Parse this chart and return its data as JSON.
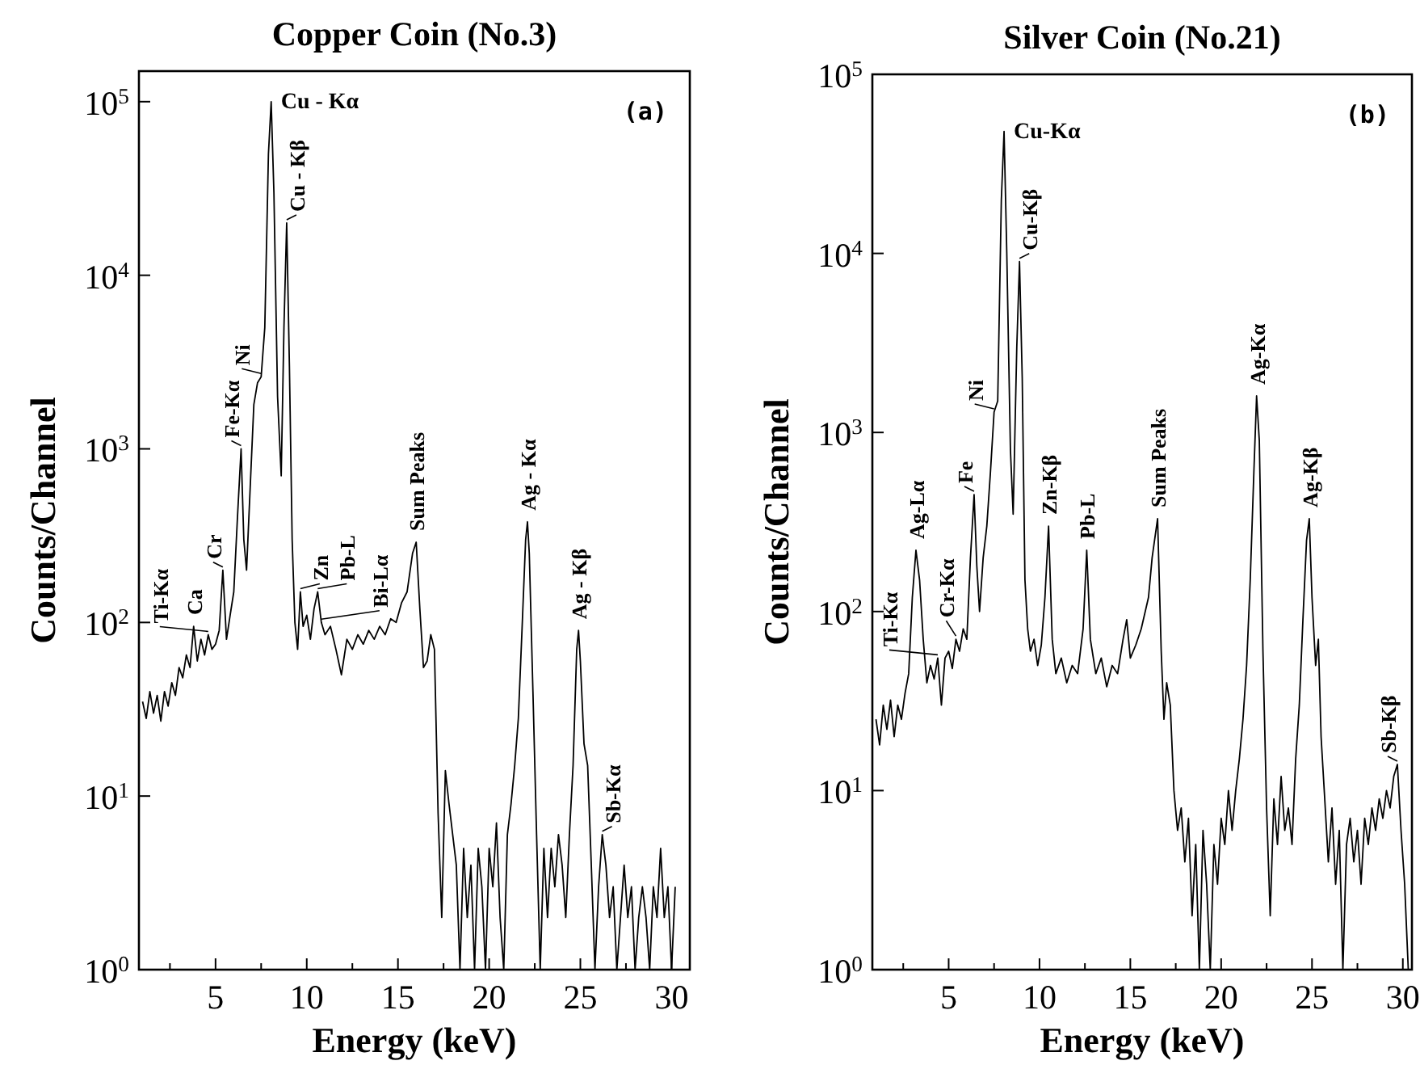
{
  "chart_data": [
    {
      "type": "line",
      "title": "Copper Coin (No.3)",
      "xlabel": "Energy (keV)",
      "ylabel": "Counts/Channel",
      "log": "y",
      "xlim": [
        0.8,
        31
      ],
      "ylim": [
        1,
        150000
      ],
      "xticks": [
        {
          "value": 2.5,
          "label": null
        },
        5,
        {
          "value": 7.5,
          "label": null
        },
        10,
        {
          "value": 12.5,
          "label": null
        },
        15,
        {
          "value": 17.5,
          "label": null
        },
        20,
        {
          "value": 22.5,
          "label": null
        },
        25,
        {
          "value": 27.5,
          "label": null
        },
        30
      ],
      "yticks": [
        {
          "value": 1,
          "label": "10$^{0}$"
        },
        {
          "value": 10,
          "label": "10$^{1}$"
        },
        {
          "value": 100,
          "label": "10$^{2}$"
        },
        {
          "value": 1000,
          "label": "10$^{3}$"
        },
        {
          "value": 10000,
          "label": "10$^{4}$"
        },
        {
          "value": 100000,
          "label": "10$^{5}$"
        }
      ],
      "series": [
        {
          "color": "#000000",
          "x": [
            1,
            1.2,
            1.4,
            1.6,
            1.8,
            2,
            2.2,
            2.4,
            2.6,
            2.8,
            3,
            3.2,
            3.4,
            3.6,
            3.8,
            4,
            4.2,
            4.4,
            4.6,
            4.8,
            5,
            5.2,
            5.4,
            5.6,
            5.8,
            6,
            6.2,
            6.4,
            6.55,
            6.7,
            6.9,
            7.1,
            7.3,
            7.5,
            7.7,
            7.9,
            8.05,
            8.2,
            8.4,
            8.6,
            8.75,
            8.9,
            9.05,
            9.2,
            9.35,
            9.5,
            9.65,
            9.8,
            10,
            10.2,
            10.4,
            10.6,
            10.8,
            11,
            11.3,
            11.6,
            11.9,
            12.2,
            12.5,
            12.8,
            13.1,
            13.4,
            13.7,
            14,
            14.3,
            14.6,
            14.9,
            15.2,
            15.5,
            15.8,
            16,
            16.2,
            16.4,
            16.6,
            16.8,
            17,
            17.2,
            17.4,
            17.6,
            17.8,
            18,
            18.2,
            18.4,
            18.6,
            18.8,
            19,
            19.2,
            19.4,
            19.6,
            19.8,
            20,
            20.2,
            20.4,
            20.6,
            20.8,
            21,
            21.2,
            21.4,
            21.6,
            21.8,
            22,
            22.1,
            22.2,
            22.4,
            22.6,
            22.8,
            23,
            23.2,
            23.4,
            23.6,
            23.8,
            24,
            24.2,
            24.4,
            24.6,
            24.8,
            24.9,
            25,
            25.2,
            25.4,
            25.6,
            25.8,
            26,
            26.2,
            26.4,
            26.6,
            26.8,
            27,
            27.2,
            27.4,
            27.6,
            27.8,
            28,
            28.2,
            28.4,
            28.6,
            28.8,
            29,
            29.2,
            29.4,
            29.6,
            29.8,
            30,
            30.2
          ],
          "values": [
            35,
            28,
            40,
            30,
            38,
            27,
            40,
            33,
            45,
            38,
            55,
            48,
            65,
            55,
            95,
            60,
            80,
            65,
            85,
            70,
            75,
            90,
            200,
            80,
            110,
            150,
            400,
            1000,
            300,
            200,
            600,
            1800,
            2400,
            2600,
            5000,
            50000,
            100000,
            30000,
            2000,
            700,
            5000,
            20000,
            3000,
            300,
            100,
            70,
            150,
            95,
            110,
            80,
            120,
            150,
            100,
            85,
            95,
            70,
            50,
            80,
            70,
            85,
            75,
            90,
            80,
            95,
            85,
            105,
            100,
            130,
            150,
            250,
            290,
            120,
            55,
            60,
            85,
            70,
            8,
            2,
            14,
            9,
            6,
            4,
            1,
            5,
            2,
            4,
            1,
            5,
            3,
            1,
            5,
            3,
            7,
            2,
            1,
            6,
            9,
            15,
            28,
            90,
            300,
            380,
            250,
            40,
            6,
            1,
            5,
            2,
            5,
            3,
            6,
            4,
            2,
            6,
            15,
            70,
            90,
            60,
            20,
            15,
            4,
            1,
            3,
            6,
            4,
            2,
            3,
            1,
            2,
            4,
            2,
            3,
            1,
            2,
            3,
            2,
            1,
            3,
            2,
            5,
            2,
            3,
            1,
            3
          ]
        }
      ],
      "annotations": [
        {
          "text": "Cu - Kα",
          "x": 8.05,
          "y": 100000
        },
        {
          "text": "Cu - Kβ",
          "x": 8.9,
          "y": 20000
        },
        {
          "text": "Ni",
          "x": 7.5,
          "y": 2600
        },
        {
          "text": "Fe-Kα",
          "x": 6.4,
          "y": 1000
        },
        {
          "text": "Zn",
          "x": 9.65,
          "y": 150
        },
        {
          "text": "Pb-L",
          "x": 10.6,
          "y": 150
        },
        {
          "text": "Bi-Lα",
          "x": 10.8,
          "y": 100
        },
        {
          "text": "Sum Peaks",
          "x": 16,
          "y": 290
        },
        {
          "text": "Ag - Kα",
          "x": 22.1,
          "y": 380
        },
        {
          "text": "Ag - Kβ",
          "x": 24.9,
          "y": 90
        },
        {
          "text": "Sb-Kα",
          "x": 26.2,
          "y": 6
        },
        {
          "text": "Ti-Kα",
          "x": 4.6,
          "y": 85
        },
        {
          "text": "Cr",
          "x": 5.4,
          "y": 200
        },
        {
          "text": "Ca",
          "x": 3.8,
          "y": 95
        },
        "(a)"
      ]
    },
    {
      "type": "line",
      "title": "Silver Coin (No.21)",
      "xlabel": "Energy (keV)",
      "ylabel": "Counts/Channel",
      "log": "y",
      "xlim": [
        0.8,
        30.5
      ],
      "ylim": [
        1,
        100000
      ],
      "xticks": [
        {
          "value": 2.5,
          "label": null
        },
        5,
        {
          "value": 7.5,
          "label": null
        },
        10,
        {
          "value": 12.5,
          "label": null
        },
        15,
        {
          "value": 17.5,
          "label": null
        },
        20,
        {
          "value": 22.5,
          "label": null
        },
        25,
        {
          "value": 27.5,
          "label": null
        },
        30
      ],
      "yticks": [
        {
          "value": 1,
          "label": "10$^{0}$"
        },
        {
          "value": 10,
          "label": "10$^{1}$"
        },
        {
          "value": 100,
          "label": "10$^{2}$"
        },
        {
          "value": 1000,
          "label": "10$^{3}$"
        },
        {
          "value": 10000,
          "label": "10$^{4}$"
        },
        {
          "value": 100000,
          "label": "10$^{5}$"
        }
      ],
      "series": [
        {
          "color": "#000000",
          "x": [
            1,
            1.2,
            1.4,
            1.6,
            1.8,
            2,
            2.2,
            2.4,
            2.6,
            2.8,
            3,
            3.2,
            3.4,
            3.6,
            3.8,
            4,
            4.2,
            4.4,
            4.6,
            4.8,
            5,
            5.2,
            5.4,
            5.6,
            5.8,
            6,
            6.2,
            6.4,
            6.55,
            6.7,
            6.9,
            7.1,
            7.3,
            7.5,
            7.7,
            7.9,
            8.05,
            8.2,
            8.4,
            8.55,
            8.75,
            8.9,
            9.05,
            9.2,
            9.35,
            9.5,
            9.7,
            9.9,
            10.1,
            10.3,
            10.5,
            10.7,
            10.9,
            11.2,
            11.5,
            11.8,
            12.1,
            12.4,
            12.6,
            12.8,
            13.1,
            13.4,
            13.7,
            14,
            14.3,
            14.6,
            14.8,
            15,
            15.3,
            15.6,
            16,
            16.2,
            16.5,
            16.7,
            16.85,
            17,
            17.2,
            17.4,
            17.6,
            17.8,
            18,
            18.2,
            18.4,
            18.6,
            18.8,
            19,
            19.2,
            19.4,
            19.6,
            19.8,
            20,
            20.2,
            20.4,
            20.6,
            20.8,
            21,
            21.2,
            21.4,
            21.6,
            21.8,
            21.95,
            22.1,
            22.3,
            22.5,
            22.7,
            22.9,
            23.1,
            23.3,
            23.5,
            23.7,
            23.9,
            24.1,
            24.3,
            24.5,
            24.7,
            24.85,
            25,
            25.2,
            25.35,
            25.5,
            25.7,
            25.9,
            26.1,
            26.3,
            26.5,
            26.7,
            26.9,
            27.1,
            27.3,
            27.5,
            27.7,
            27.9,
            28.1,
            28.3,
            28.5,
            28.7,
            28.9,
            29.1,
            29.3,
            29.5,
            29.7,
            29.9,
            30.1,
            30.3
          ],
          "values": [
            25,
            18,
            30,
            22,
            32,
            20,
            30,
            25,
            35,
            45,
            120,
            220,
            150,
            70,
            40,
            50,
            42,
            55,
            30,
            55,
            60,
            48,
            70,
            60,
            80,
            70,
            200,
            450,
            180,
            100,
            200,
            300,
            600,
            1300,
            1500,
            20000,
            48000,
            10000,
            800,
            350,
            3000,
            9000,
            2000,
            150,
            80,
            60,
            70,
            50,
            65,
            120,
            300,
            70,
            45,
            55,
            40,
            50,
            45,
            80,
            220,
            70,
            45,
            55,
            38,
            50,
            45,
            70,
            90,
            55,
            65,
            80,
            120,
            200,
            330,
            60,
            25,
            40,
            30,
            10,
            6,
            8,
            4,
            7,
            2,
            5,
            1,
            6,
            3,
            1,
            5,
            3,
            7,
            5,
            10,
            6,
            10,
            15,
            25,
            50,
            150,
            600,
            1600,
            900,
            60,
            8,
            2,
            9,
            5,
            12,
            6,
            8,
            5,
            15,
            30,
            90,
            250,
            330,
            120,
            50,
            70,
            20,
            9,
            4,
            8,
            3,
            6,
            1,
            5,
            7,
            4,
            6,
            3,
            7,
            5,
            8,
            6,
            9,
            7,
            10,
            8,
            12,
            14,
            6,
            3,
            1
          ]
        }
      ],
      "annotations": [
        {
          "text": "Cu-Kα",
          "x": 8.05,
          "y": 48000
        },
        {
          "text": "Cu-Kβ",
          "x": 8.9,
          "y": 9000
        },
        {
          "text": "Ni",
          "x": 7.5,
          "y": 1300
        },
        {
          "text": "Cr-Kα",
          "x": 5.4,
          "y": 70
        },
        {
          "text": "Ti-Kα",
          "x": 4.4,
          "y": 55
        },
        {
          "text": "Fe",
          "x": 6.4,
          "y": 450
        },
        {
          "text": "Ag-Lα",
          "x": 3.2,
          "y": 220
        },
        {
          "text": "Zn-Kβ",
          "x": 10.5,
          "y": 300
        },
        {
          "text": "Pb-L",
          "x": 12.6,
          "y": 220
        },
        {
          "text": "Sum Peaks",
          "x": 16.5,
          "y": 330
        },
        {
          "text": "Ag-Kα",
          "x": 21.95,
          "y": 1600
        },
        {
          "text": "Ag-Kβ",
          "x": 24.85,
          "y": 330
        },
        {
          "text": "Sb-Kβ",
          "x": 29.7,
          "y": 14
        },
        "(b)"
      ]
    }
  ]
}
